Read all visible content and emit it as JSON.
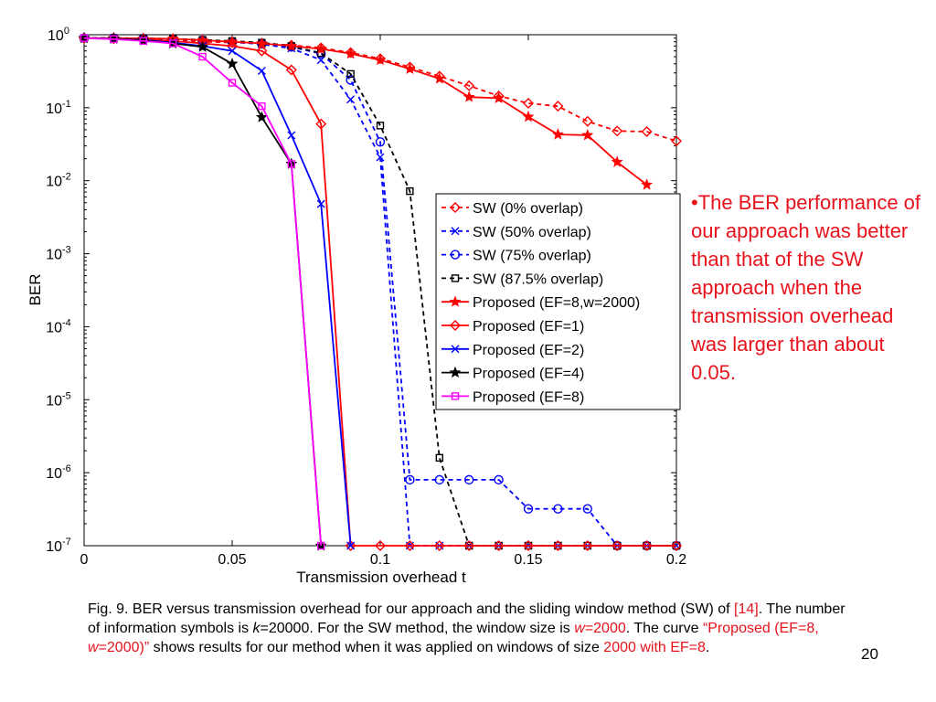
{
  "chart_data": {
    "type": "line",
    "xlabel": "Transmission overhead t",
    "ylabel": "BER",
    "xlim": [
      0,
      0.2
    ],
    "ylim": [
      1e-07,
      1
    ],
    "yscale": "log",
    "xticks": [
      "0",
      "0.05",
      "0.1",
      "0.15",
      "0.2"
    ],
    "yticks": [
      {
        "base": "10",
        "exp": "0"
      },
      {
        "base": "10",
        "exp": "-1"
      },
      {
        "base": "10",
        "exp": "-2"
      },
      {
        "base": "10",
        "exp": "-3"
      },
      {
        "base": "10",
        "exp": "-4"
      },
      {
        "base": "10",
        "exp": "-5"
      },
      {
        "base": "10",
        "exp": "-6"
      },
      {
        "base": "10",
        "exp": "-7"
      }
    ],
    "grid": false,
    "legend_position": "center-right",
    "series": [
      {
        "name": "SW (0% overlap)",
        "color": "#ff0000",
        "dash": "dashed",
        "marker": "diamond",
        "points": [
          [
            0,
            0.9
          ],
          [
            0.01,
            0.9
          ],
          [
            0.02,
            0.88
          ],
          [
            0.03,
            0.85
          ],
          [
            0.04,
            0.8
          ],
          [
            0.05,
            0.78
          ],
          [
            0.06,
            0.76
          ],
          [
            0.07,
            0.72
          ],
          [
            0.08,
            0.66
          ],
          [
            0.09,
            0.57
          ],
          [
            0.1,
            0.47
          ],
          [
            0.11,
            0.36
          ],
          [
            0.12,
            0.27
          ],
          [
            0.13,
            0.2
          ],
          [
            0.14,
            0.145
          ],
          [
            0.15,
            0.115
          ],
          [
            0.16,
            0.105
          ],
          [
            0.17,
            0.065
          ],
          [
            0.18,
            0.048
          ],
          [
            0.19,
            0.047
          ],
          [
            0.2,
            0.035
          ]
        ]
      },
      {
        "name": "SW (50% overlap)",
        "color": "#0000ff",
        "dash": "dashed",
        "marker": "x",
        "points": [
          [
            0,
            0.9
          ],
          [
            0.01,
            0.9
          ],
          [
            0.02,
            0.89
          ],
          [
            0.03,
            0.87
          ],
          [
            0.04,
            0.84
          ],
          [
            0.05,
            0.8
          ],
          [
            0.06,
            0.74
          ],
          [
            0.07,
            0.65
          ],
          [
            0.08,
            0.45
          ],
          [
            0.09,
            0.13
          ],
          [
            0.1,
            0.021
          ],
          [
            0.11,
            1e-07
          ],
          [
            0.12,
            1e-07
          ],
          [
            0.13,
            1e-07
          ],
          [
            0.14,
            1e-07
          ],
          [
            0.15,
            1e-07
          ],
          [
            0.16,
            1e-07
          ],
          [
            0.17,
            1e-07
          ],
          [
            0.18,
            1e-07
          ],
          [
            0.19,
            1e-07
          ],
          [
            0.2,
            1e-07
          ]
        ]
      },
      {
        "name": "SW (75% overlap)",
        "color": "#0000ff",
        "dash": "dashed",
        "marker": "circle",
        "points": [
          [
            0,
            0.9
          ],
          [
            0.01,
            0.9
          ],
          [
            0.02,
            0.89
          ],
          [
            0.03,
            0.87
          ],
          [
            0.04,
            0.84
          ],
          [
            0.05,
            0.8
          ],
          [
            0.06,
            0.75
          ],
          [
            0.07,
            0.68
          ],
          [
            0.08,
            0.55
          ],
          [
            0.09,
            0.24
          ],
          [
            0.1,
            0.034
          ],
          [
            0.11,
            8e-07
          ],
          [
            0.12,
            8e-07
          ],
          [
            0.13,
            8e-07
          ],
          [
            0.14,
            8e-07
          ],
          [
            0.15,
            3.2e-07
          ],
          [
            0.16,
            3.2e-07
          ],
          [
            0.17,
            3.2e-07
          ],
          [
            0.18,
            1e-07
          ],
          [
            0.19,
            1e-07
          ],
          [
            0.2,
            1e-07
          ]
        ]
      },
      {
        "name": "SW (87.5% overlap)",
        "color": "#000000",
        "dash": "dashed",
        "marker": "square",
        "points": [
          [
            0,
            0.9
          ],
          [
            0.01,
            0.9
          ],
          [
            0.02,
            0.89
          ],
          [
            0.03,
            0.88
          ],
          [
            0.04,
            0.85
          ],
          [
            0.05,
            0.82
          ],
          [
            0.06,
            0.78
          ],
          [
            0.07,
            0.7
          ],
          [
            0.08,
            0.56
          ],
          [
            0.09,
            0.29
          ],
          [
            0.1,
            0.057
          ],
          [
            0.11,
            0.0072
          ],
          [
            0.12,
            1.6e-06
          ],
          [
            0.13,
            1e-07
          ],
          [
            0.14,
            1e-07
          ],
          [
            0.15,
            1e-07
          ],
          [
            0.16,
            1e-07
          ],
          [
            0.17,
            1e-07
          ],
          [
            0.18,
            1e-07
          ],
          [
            0.19,
            1e-07
          ],
          [
            0.2,
            1e-07
          ]
        ]
      },
      {
        "name": "Proposed (EF=8,w=2000)",
        "color": "#ff0000",
        "dash": "solid",
        "marker": "star",
        "points": [
          [
            0,
            0.9
          ],
          [
            0.01,
            0.9
          ],
          [
            0.02,
            0.89
          ],
          [
            0.03,
            0.88
          ],
          [
            0.04,
            0.84
          ],
          [
            0.05,
            0.8
          ],
          [
            0.06,
            0.76
          ],
          [
            0.07,
            0.7
          ],
          [
            0.08,
            0.64
          ],
          [
            0.09,
            0.55
          ],
          [
            0.1,
            0.45
          ],
          [
            0.11,
            0.34
          ],
          [
            0.12,
            0.25
          ],
          [
            0.13,
            0.14
          ],
          [
            0.14,
            0.135
          ],
          [
            0.15,
            0.075
          ],
          [
            0.16,
            0.043
          ],
          [
            0.17,
            0.042
          ],
          [
            0.18,
            0.018
          ],
          [
            0.19,
            0.0088
          ]
        ]
      },
      {
        "name": "Proposed (EF=1)",
        "color": "#ff0000",
        "dash": "solid",
        "marker": "diamond",
        "points": [
          [
            0,
            0.9
          ],
          [
            0.01,
            0.88
          ],
          [
            0.02,
            0.86
          ],
          [
            0.03,
            0.82
          ],
          [
            0.04,
            0.76
          ],
          [
            0.05,
            0.7
          ],
          [
            0.06,
            0.6
          ],
          [
            0.07,
            0.33
          ],
          [
            0.08,
            0.06
          ],
          [
            0.09,
            1e-07
          ],
          [
            0.1,
            1e-07
          ],
          [
            0.11,
            1e-07
          ],
          [
            0.12,
            1e-07
          ],
          [
            0.13,
            1e-07
          ],
          [
            0.14,
            1e-07
          ],
          [
            0.15,
            1e-07
          ],
          [
            0.16,
            1e-07
          ],
          [
            0.17,
            1e-07
          ],
          [
            0.18,
            1e-07
          ],
          [
            0.19,
            1e-07
          ],
          [
            0.2,
            1e-07
          ]
        ]
      },
      {
        "name": "Proposed (EF=2)",
        "color": "#0000ff",
        "dash": "solid",
        "marker": "x",
        "points": [
          [
            0,
            0.9
          ],
          [
            0.01,
            0.88
          ],
          [
            0.02,
            0.85
          ],
          [
            0.03,
            0.78
          ],
          [
            0.04,
            0.7
          ],
          [
            0.05,
            0.6
          ],
          [
            0.06,
            0.32
          ],
          [
            0.07,
            0.042
          ],
          [
            0.08,
            0.0048
          ],
          [
            0.09,
            1e-07
          ]
        ]
      },
      {
        "name": "Proposed (EF=4)",
        "color": "#000000",
        "dash": "solid",
        "marker": "star",
        "points": [
          [
            0,
            0.9
          ],
          [
            0.01,
            0.88
          ],
          [
            0.02,
            0.84
          ],
          [
            0.03,
            0.76
          ],
          [
            0.04,
            0.68
          ],
          [
            0.05,
            0.4
          ],
          [
            0.06,
            0.074
          ],
          [
            0.07,
            0.017
          ],
          [
            0.08,
            1e-07
          ]
        ]
      },
      {
        "name": "Proposed (EF=8)",
        "color": "#ff00ff",
        "dash": "solid",
        "marker": "square",
        "points": [
          [
            0,
            0.9
          ],
          [
            0.01,
            0.87
          ],
          [
            0.02,
            0.82
          ],
          [
            0.03,
            0.76
          ],
          [
            0.04,
            0.5
          ],
          [
            0.05,
            0.22
          ],
          [
            0.06,
            0.105
          ],
          [
            0.07,
            0.017
          ],
          [
            0.08,
            1e-07
          ]
        ]
      }
    ]
  },
  "side_note": "•The BER performance of our approach was better than that of the SW approach when the transmission overhead was larger than about 0.05.",
  "caption": {
    "part1": "Fig. 9. BER versus transmission overhead for our approach and the sliding window method (SW) of ",
    "ref": "[14]",
    "part2": ". The number of information symbols is ",
    "k_var": "k",
    "part3": "=20000. For the SW method, the window size is ",
    "w_var": "w",
    "w_val": "=2000",
    "part4": ". The curve ",
    "quote_a": "“Proposed (EF=8, ",
    "quote_w": "w",
    "quote_b": "=2000)”",
    "part5": " shows results for our method when it was applied on windows of size ",
    "red_end": "2000 with EF=8",
    "part6": "."
  },
  "slide_number": "20"
}
